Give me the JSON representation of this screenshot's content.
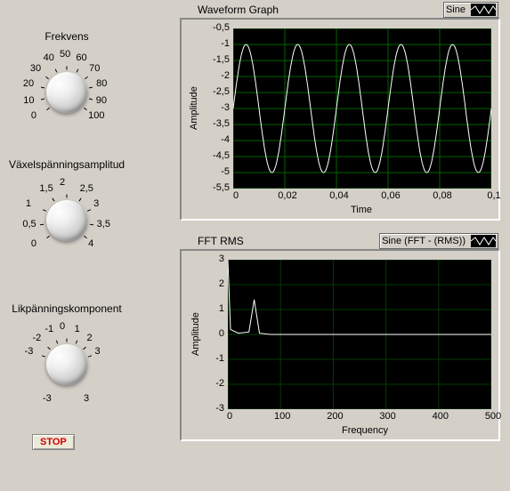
{
  "dials": {
    "frekvens": {
      "label": "Frekvens",
      "ticks": [
        "0",
        "10",
        "20",
        "30",
        "40",
        "50",
        "60",
        "70",
        "80",
        "90",
        "100"
      ],
      "value": 50
    },
    "amplitud": {
      "label": "Växelspänningsamplitud",
      "ticks": [
        "0",
        "0,5",
        "1",
        "1,5",
        "2",
        "2,5",
        "3",
        "3,5",
        "4"
      ],
      "value": 2
    },
    "dc": {
      "label": "Likpänningskomponent",
      "ticks": [
        "-3",
        "-2",
        "-1",
        "0",
        "1",
        "2",
        "3",
        "-3",
        "3"
      ],
      "value": -3
    }
  },
  "stop_label": "STOP",
  "waveform": {
    "title": "Waveform Graph",
    "legend": "Sine",
    "xlabel": "Time",
    "ylabel": "Amplitude",
    "xlim": [
      0,
      0.1
    ],
    "ylim": [
      -5.5,
      -0.5
    ],
    "xticks": [
      0,
      0.02,
      0.04,
      0.06,
      0.08,
      0.1
    ],
    "xtick_labels": [
      "0",
      "0,02",
      "0,04",
      "0,06",
      "0,08",
      "0,1"
    ],
    "yticks": [
      -0.5,
      -1,
      -1.5,
      -2,
      -2.5,
      -3,
      -3.5,
      -4,
      -4.5,
      -5,
      -5.5
    ],
    "ytick_labels": [
      "-0,5",
      "-1",
      "-1,5",
      "-2",
      "-2,5",
      "-3",
      "-3,5",
      "-4",
      "-4,5",
      "-5",
      "-5,5"
    ],
    "series": {
      "type": "sine",
      "freq": 50,
      "amp": 2,
      "offset": -3,
      "color": "#ffffff",
      "linewidth": 1
    },
    "bg": "#000000",
    "grid": "#006400"
  },
  "fft": {
    "title": "FFT RMS",
    "legend": "Sine (FFT - (RMS))",
    "xlabel": "Frequency",
    "ylabel": "Amplitude",
    "xlim": [
      0,
      500
    ],
    "ylim": [
      -3,
      3
    ],
    "xticks": [
      0,
      100,
      200,
      300,
      400,
      500
    ],
    "xtick_labels": [
      "0",
      "100",
      "200",
      "300",
      "400",
      "500"
    ],
    "yticks": [
      -3,
      -2,
      -1,
      0,
      1,
      2,
      3
    ],
    "ytick_labels": [
      "-3",
      "-2",
      "-1",
      "0",
      "1",
      "2",
      "3"
    ],
    "series": {
      "points": [
        [
          0,
          3
        ],
        [
          5,
          0.2
        ],
        [
          20,
          0.05
        ],
        [
          40,
          0.1
        ],
        [
          50,
          1.4
        ],
        [
          60,
          0.05
        ],
        [
          80,
          0
        ],
        [
          500,
          0
        ]
      ],
      "color": "#ffffff",
      "linewidth": 1
    },
    "bg": "#000000",
    "grid": "#003c00"
  }
}
